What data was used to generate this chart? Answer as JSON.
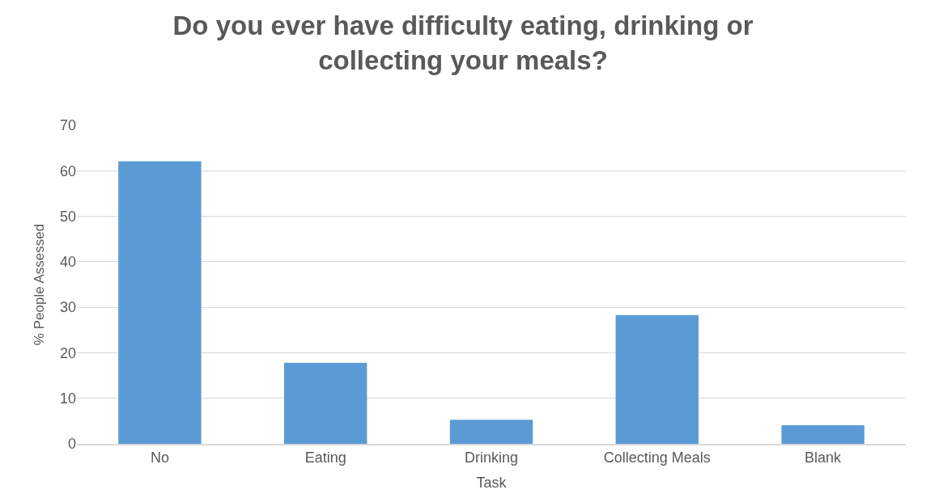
{
  "chart_data": {
    "type": "bar",
    "title": "Do you ever have difficulty eating, drinking or collecting your meals?",
    "xlabel": "Task",
    "ylabel": "% People Assessed",
    "categories": [
      "No",
      "Eating",
      "Drinking",
      "Collecting Meals",
      "Blank"
    ],
    "values": [
      62.1,
      17.8,
      5.3,
      28.3,
      4.1
    ],
    "color": "#5b9bd5",
    "ylim": [
      0,
      70
    ],
    "yticks": [
      0,
      10,
      20,
      30,
      40,
      50,
      60,
      70
    ],
    "grid": "y"
  }
}
